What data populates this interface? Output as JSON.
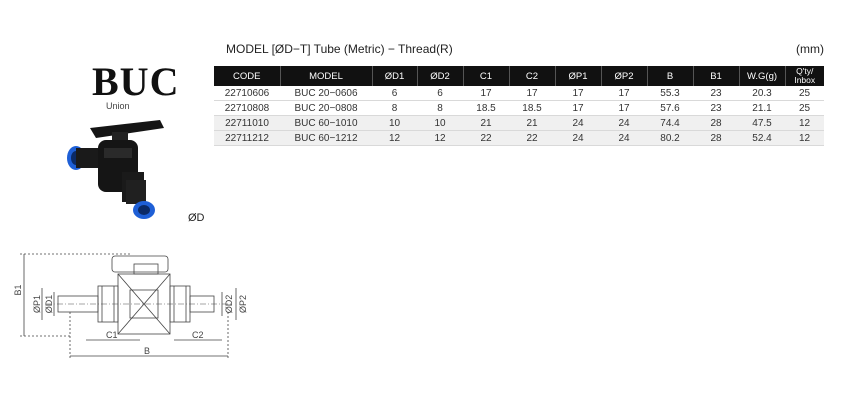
{
  "product": {
    "brand": "BUC",
    "subtitle": "Union",
    "od_label": "ØD",
    "header": {
      "model_label": "MODEL [ØD−T]  Tube (Metric) − Thread(R)",
      "unit": "(mm)"
    }
  },
  "table": {
    "columns": [
      "CODE",
      "MODEL",
      "ØD1",
      "ØD2",
      "C1",
      "C2",
      "ØP1",
      "ØP2",
      "B",
      "B1",
      "W.G(g)"
    ],
    "qty_header": [
      "Q'ty/",
      "Inbox"
    ],
    "rows": [
      {
        "code": "22710606",
        "model": "BUC 20−0606",
        "d1": "6",
        "d2": "6",
        "c1": "17",
        "c2": "17",
        "p1": "17",
        "p2": "17",
        "b": "55.3",
        "b1": "23",
        "wg": "20.3",
        "qty": "25"
      },
      {
        "code": "22710808",
        "model": "BUC 20−0808",
        "d1": "8",
        "d2": "8",
        "c1": "18.5",
        "c2": "18.5",
        "p1": "17",
        "p2": "17",
        "b": "57.6",
        "b1": "23",
        "wg": "21.1",
        "qty": "25"
      },
      {
        "code": "22711010",
        "model": "BUC 60−1010",
        "d1": "10",
        "d2": "10",
        "c1": "21",
        "c2": "21",
        "p1": "24",
        "p2": "24",
        "b": "74.4",
        "b1": "28",
        "wg": "47.5",
        "qty": "12"
      },
      {
        "code": "22711212",
        "model": "BUC 60−1212",
        "d1": "12",
        "d2": "12",
        "c1": "22",
        "c2": "22",
        "p1": "24",
        "p2": "24",
        "b": "80.2",
        "b1": "28",
        "wg": "52.4",
        "qty": "12"
      }
    ]
  },
  "drawing": {
    "labels": {
      "b1": "B1",
      "p1": "ØP1",
      "d1": "ØD1",
      "d2": "ØD2",
      "p2": "ØP2",
      "c1": "C1",
      "c2": "C2",
      "b": "B"
    }
  },
  "colors": {
    "header_bg": "#111111",
    "band_bg": "#f0f0f0",
    "fitting_blue": "#1e5fd6",
    "body_black": "#151515"
  }
}
